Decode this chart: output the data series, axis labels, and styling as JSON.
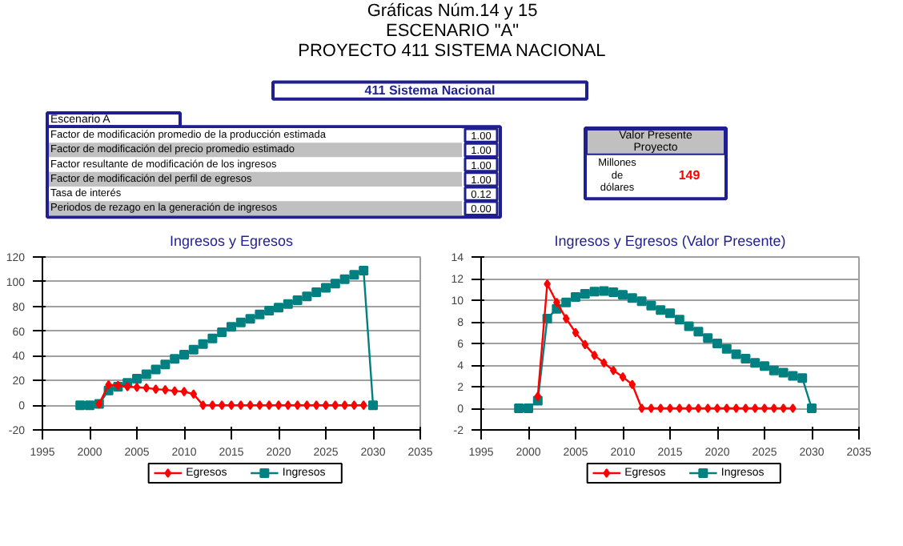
{
  "chart_data": [
    {
      "type": "other",
      "title": "Gráficas Núm.14 y 15",
      "subtitle": "ESCENARIO \"A\"\nPROYECTO 411 SISTEMA NACIONAL",
      "annotations": [
        "411 Sistema Nacional",
        "Escenario A",
        "Factor de modificación promedio de la producción estimada",
        "Factor de modificación del precio promedio estimado",
        "Factor resultante de modificación de los ingresos",
        "Factor de modificación del perfil de egresos",
        "Tasa de interés",
        "Periodos de rezago en la generación de ingresos",
        "1.00",
        "1.00",
        "1.00",
        "1.00",
        "0.12",
        "0.00",
        "Valor Presente Proyecto",
        "Millones de dólares",
        "149"
      ]
    },
    {
      "type": "line",
      "title": "Ingresos y Egresos",
      "xlim": [
        1995,
        2035
      ],
      "xticks": [
        1995,
        2000,
        2005,
        2010,
        2015,
        2020,
        2025,
        2030,
        2035
      ],
      "ylim": [
        -20,
        120
      ],
      "yticks": [
        -20,
        0,
        20,
        40,
        60,
        80,
        100,
        120
      ],
      "grid": "y",
      "legend": "bottom",
      "series": [
        {
          "name": "Egresos",
          "color": "#ff0000",
          "marker": "diamond",
          "x": [
            2001,
            2002,
            2003,
            2004,
            2005,
            2006,
            2007,
            2008,
            2009,
            2010,
            2011,
            2012,
            2013,
            2014,
            2015,
            2016,
            2017,
            2018,
            2019,
            2020,
            2021,
            2022,
            2023,
            2024,
            2025,
            2026,
            2027,
            2028,
            2029
          ],
          "values": [
            1,
            16.5,
            16,
            15,
            14.5,
            14,
            13,
            12.5,
            11.5,
            11,
            9,
            0,
            0,
            0,
            0,
            0,
            0,
            0,
            0,
            0,
            0,
            0,
            0,
            0,
            0,
            0,
            0,
            0,
            0
          ]
        },
        {
          "name": "Ingresos",
          "color": "#008080",
          "marker": "square",
          "x": [
            1999,
            2000,
            2001,
            2002,
            2003,
            2004,
            2005,
            2006,
            2007,
            2008,
            2009,
            2010,
            2011,
            2012,
            2013,
            2014,
            2015,
            2016,
            2017,
            2018,
            2019,
            2020,
            2021,
            2022,
            2023,
            2024,
            2025,
            2026,
            2027,
            2028,
            2029,
            2030
          ],
          "values": [
            0,
            0,
            1,
            12,
            15,
            18,
            21.5,
            25,
            29,
            33,
            37.5,
            41,
            45,
            49.5,
            54,
            59,
            63.5,
            67,
            70,
            73.5,
            76.5,
            79,
            82,
            85,
            88,
            91.5,
            95,
            98.5,
            102,
            105.5,
            109,
            0
          ]
        }
      ]
    },
    {
      "type": "line",
      "title": "Ingresos y Egresos (Valor Presente)",
      "xlim": [
        1995,
        2035
      ],
      "xticks": [
        1995,
        2000,
        2005,
        2010,
        2015,
        2020,
        2025,
        2030,
        2035
      ],
      "ylim": [
        -2,
        14
      ],
      "yticks": [
        -2,
        0,
        2,
        4,
        6,
        8,
        10,
        12,
        14
      ],
      "grid": "y",
      "legend": "bottom",
      "series": [
        {
          "name": "Egresos",
          "color": "#ff0000",
          "marker": "diamond",
          "x": [
            2001,
            2002,
            2003,
            2004,
            2005,
            2006,
            2007,
            2008,
            2009,
            2010,
            2011,
            2012,
            2013,
            2014,
            2015,
            2016,
            2017,
            2018,
            2019,
            2020,
            2021,
            2022,
            2023,
            2024,
            2025,
            2026,
            2027,
            2028
          ],
          "values": [
            1.1,
            11.5,
            9.8,
            8.3,
            7.0,
            5.9,
            4.9,
            4.2,
            3.5,
            2.9,
            2.2,
            0,
            0,
            0,
            0,
            0,
            0,
            0,
            0,
            0,
            0,
            0,
            0,
            0,
            0,
            0,
            0,
            0
          ]
        },
        {
          "name": "Ingresos",
          "color": "#008080",
          "marker": "square",
          "x": [
            1999,
            2000,
            2001,
            2002,
            2003,
            2004,
            2005,
            2006,
            2007,
            2008,
            2009,
            2010,
            2011,
            2012,
            2013,
            2014,
            2015,
            2016,
            2017,
            2018,
            2019,
            2020,
            2021,
            2022,
            2023,
            2024,
            2025,
            2026,
            2027,
            2028,
            2029,
            2030
          ],
          "values": [
            0,
            0,
            0.7,
            8.3,
            9.2,
            9.8,
            10.3,
            10.6,
            10.8,
            10.85,
            10.75,
            10.5,
            10.2,
            9.9,
            9.5,
            9.1,
            8.8,
            8.2,
            7.6,
            7.1,
            6.5,
            6.0,
            5.5,
            5.0,
            4.6,
            4.2,
            3.9,
            3.5,
            3.3,
            3.0,
            2.8,
            0
          ]
        }
      ]
    }
  ]
}
